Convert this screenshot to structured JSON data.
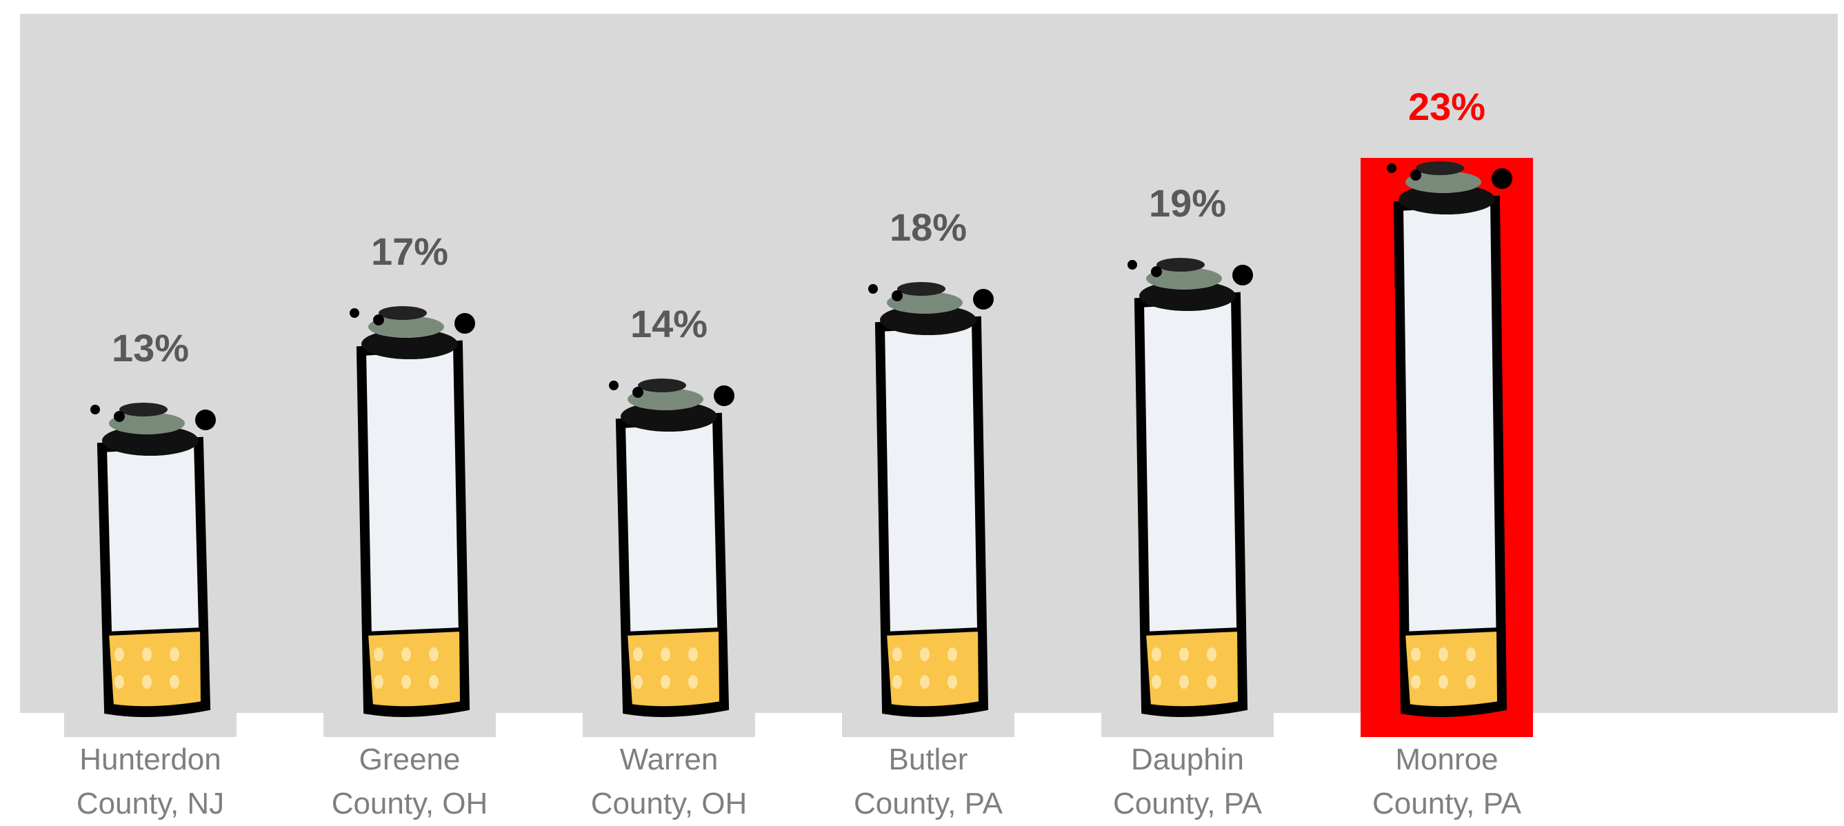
{
  "chart_data": {
    "type": "pictograph",
    "categories": [
      "Hunterdon County, NJ",
      "Greene County, OH",
      "Warren County, OH",
      "Butler County, PA",
      "Dauphin County, PA",
      "Monroe County, PA"
    ],
    "values": [
      13,
      17,
      14,
      18,
      19,
      23
    ],
    "value_labels": [
      "13%",
      "17%",
      "14%",
      "18%",
      "19%",
      "23%"
    ],
    "value_label_colors": [
      "#595959",
      "#595959",
      "#595959",
      "#595959",
      "#595959",
      "#ff0000"
    ],
    "bar_background_colors": [
      "#d9d9d9",
      "#d9d9d9",
      "#d9d9d9",
      "#d9d9d9",
      "#d9d9d9",
      "#ff0000"
    ]
  }
}
